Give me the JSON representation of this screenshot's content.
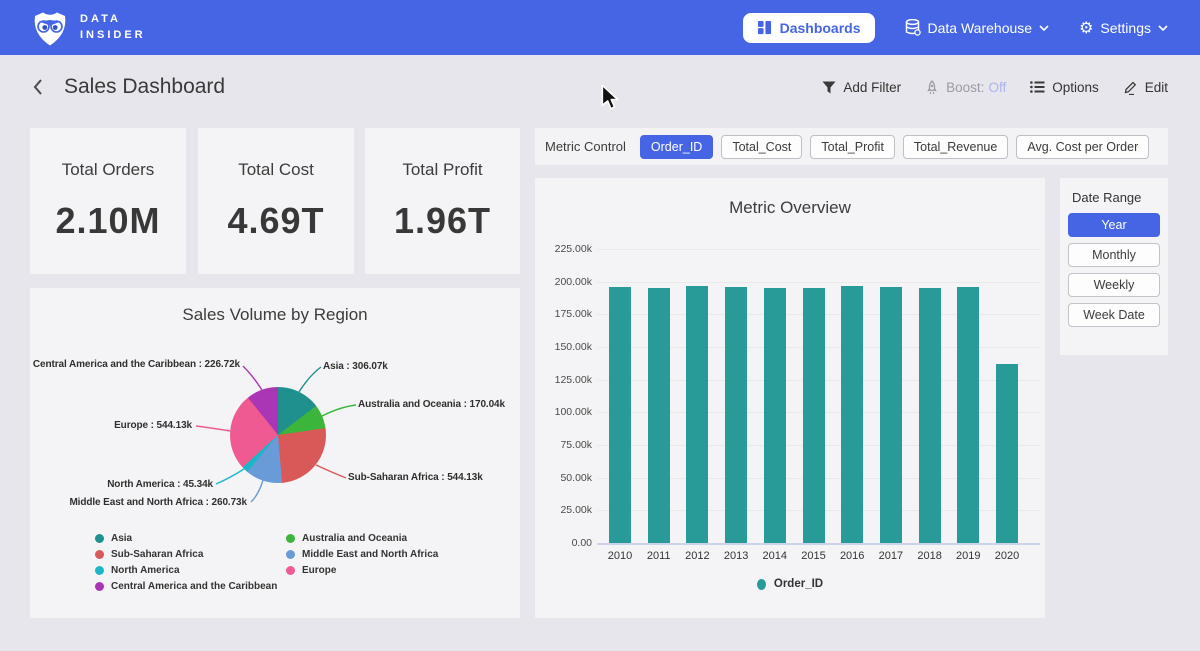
{
  "navbar": {
    "brand_line1": "DATA",
    "brand_line2": "INSIDER",
    "dashboards_label": "Dashboards",
    "data_warehouse_label": "Data Warehouse",
    "settings_label": "Settings"
  },
  "header": {
    "title": "Sales Dashboard",
    "add_filter_label": "Add Filter",
    "boost_label": "Boost:",
    "boost_state": "Off",
    "options_label": "Options",
    "edit_label": "Edit"
  },
  "kpis": [
    {
      "label": "Total Orders",
      "value": "2.10M"
    },
    {
      "label": "Total Cost",
      "value": "4.69T"
    },
    {
      "label": "Total Profit",
      "value": "1.96T"
    }
  ],
  "metric_control": {
    "label": "Metric Control",
    "options": [
      {
        "label": "Order_ID",
        "selected": true
      },
      {
        "label": "Total_Cost",
        "selected": false
      },
      {
        "label": "Total_Profit",
        "selected": false
      },
      {
        "label": "Total_Revenue",
        "selected": false
      },
      {
        "label": "Avg. Cost per Order",
        "selected": false
      }
    ]
  },
  "date_range": {
    "label": "Date Range",
    "options": [
      {
        "label": "Year",
        "selected": true
      },
      {
        "label": "Monthly",
        "selected": false
      },
      {
        "label": "Weekly",
        "selected": false
      },
      {
        "label": "Week Date",
        "selected": false
      }
    ]
  },
  "colors": {
    "navbar_blue": "#4565e4",
    "selected_blue": "#4565e4",
    "bar_teal": "#289a98",
    "boost_off": "#a9b5ec"
  },
  "chart_data": [
    {
      "id": "sales-volume-by-region",
      "type": "pie",
      "title": "Sales Volume by Region",
      "slices": [
        {
          "name": "Asia",
          "value": 306070,
          "display": "306.07k",
          "color": "#1f908d"
        },
        {
          "name": "Australia and Oceania",
          "value": 170040,
          "display": "170.04k",
          "color": "#3cb53b"
        },
        {
          "name": "Sub-Saharan Africa",
          "value": 544130,
          "display": "544.13k",
          "color": "#d95858"
        },
        {
          "name": "Middle East and North Africa",
          "value": 260730,
          "display": "260.73k",
          "color": "#689bd8"
        },
        {
          "name": "North America",
          "value": 45340,
          "display": "45.34k",
          "color": "#1cb6c9"
        },
        {
          "name": "Europe",
          "value": 544130,
          "display": "544.13k",
          "color": "#f05a92"
        },
        {
          "name": "Central America and the Caribbean",
          "value": 226720,
          "display": "226.72k",
          "color": "#aa35b5"
        }
      ],
      "legend_columns": [
        [
          "Asia",
          "Sub-Saharan Africa",
          "North America",
          "Central America and the Caribbean"
        ],
        [
          "Australia and Oceania",
          "Middle East and North Africa",
          "Europe"
        ]
      ],
      "label_format": "name : value"
    },
    {
      "id": "metric-overview",
      "type": "bar",
      "title": "Metric Overview",
      "categories": [
        "2010",
        "2011",
        "2012",
        "2013",
        "2014",
        "2015",
        "2016",
        "2017",
        "2018",
        "2019",
        "2020"
      ],
      "series": [
        {
          "name": "Order_ID",
          "color": "#289a98",
          "values": [
            195600,
            195500,
            196800,
            195600,
            195400,
            195500,
            196700,
            195900,
            195500,
            195600,
            137300
          ]
        }
      ],
      "y_ticks": [
        "225.00k",
        "200.00k",
        "175.00k",
        "150.00k",
        "125.00k",
        "100.00k",
        "75.00k",
        "50.00k",
        "25.00k",
        "0.00"
      ],
      "ylim": [
        0,
        225000
      ],
      "grid": true,
      "legend_position": "bottom"
    }
  ]
}
